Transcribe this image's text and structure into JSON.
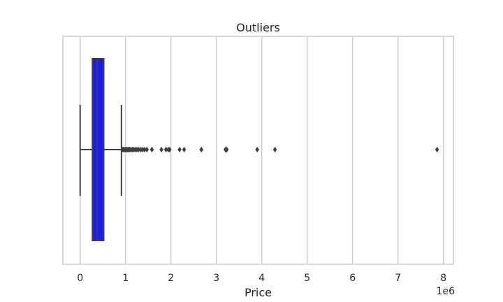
{
  "chart_data": {
    "type": "boxplot",
    "title": "Outliers",
    "xlabel": "Price",
    "ylabel": "",
    "x_offset_text": "1e6",
    "xlim": [
      -0.38,
      8.22
    ],
    "xticks": [
      0,
      1,
      2,
      3,
      4,
      5,
      6,
      7,
      8
    ],
    "xtick_labels": [
      "0",
      "1",
      "2",
      "3",
      "4",
      "5",
      "6",
      "7",
      "8"
    ],
    "grid": true,
    "orientation": "horizontal",
    "box_color": "#1a1aff",
    "line_color": "#3f3f3f",
    "box": {
      "whisker_low": 0.0,
      "q1": 0.27,
      "median": 0.38,
      "q3": 0.52,
      "whisker_high": 0.91
    },
    "outliers": [
      0.93,
      0.95,
      0.97,
      0.99,
      1.01,
      1.03,
      1.05,
      1.07,
      1.09,
      1.12,
      1.15,
      1.18,
      1.21,
      1.25,
      1.29,
      1.34,
      1.38,
      1.42,
      1.47,
      1.58,
      1.79,
      1.89,
      1.94,
      1.97,
      2.19,
      2.29,
      2.67,
      3.2,
      3.23,
      3.9,
      4.29,
      7.86
    ]
  }
}
